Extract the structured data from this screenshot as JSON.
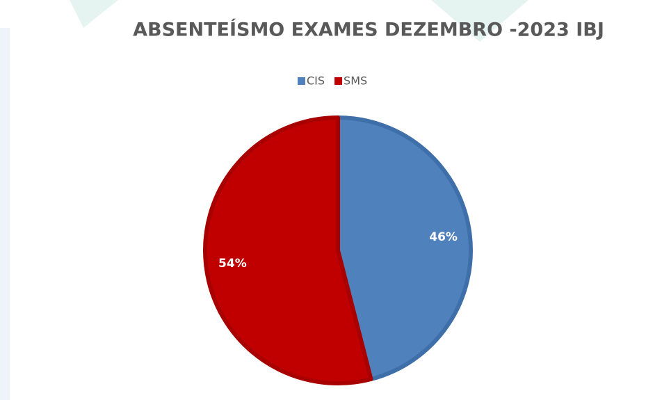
{
  "chart_data": {
    "type": "pie",
    "title": "ABSENTEÍSMO EXAMES DEZEMBRO -2023 IBJ",
    "categories": [
      "CIS",
      "SMS"
    ],
    "values": [
      46,
      54
    ],
    "value_labels": [
      "46%",
      "54%"
    ],
    "colors": [
      "#4f81bd",
      "#c00000"
    ],
    "legend": "top"
  }
}
